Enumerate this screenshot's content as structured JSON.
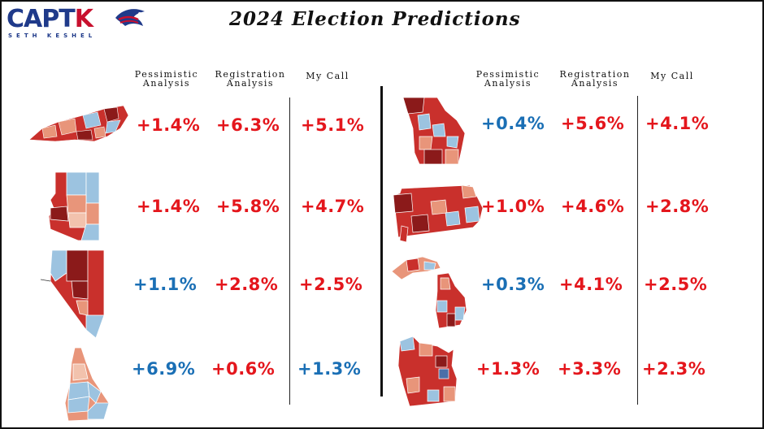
{
  "brand": {
    "logo_main": "CAPTK",
    "logo_sub": "SETH KESHEL"
  },
  "title": "2024 Election Predictions",
  "headers": {
    "pessimistic": [
      "Pessimistic",
      "Analysis"
    ],
    "registration": [
      "Registration",
      "Analysis"
    ],
    "my_call": "My Call"
  },
  "left_rows": [
    {
      "map_icon": "north-carolina-county-map",
      "pessimistic": "+1.4%",
      "registration": "+6.3%",
      "my_call": "+5.1%"
    },
    {
      "map_icon": "arizona-county-map",
      "pessimistic": "+1.4%",
      "registration": "+5.8%",
      "my_call": "+4.7%"
    },
    {
      "map_icon": "nevada-county-map",
      "pessimistic": "+1.1%",
      "registration": "+2.8%",
      "my_call": "+2.5%"
    },
    {
      "map_icon": "new-hampshire-county-map",
      "pessimistic": "+6.9%",
      "registration": "+0.6%",
      "my_call": "+1.3%"
    }
  ],
  "right_rows": [
    {
      "map_icon": "georgia-county-map",
      "pessimistic": "+0.4%",
      "registration": "+5.6%",
      "my_call": "+4.1%"
    },
    {
      "map_icon": "pennsylvania-county-map",
      "pessimistic": "+1.0%",
      "registration": "+4.6%",
      "my_call": "+2.8%"
    },
    {
      "map_icon": "michigan-county-map",
      "pessimistic": "+0.3%",
      "registration": "+4.1%",
      "my_call": "+2.5%"
    },
    {
      "map_icon": "wisconsin-county-map",
      "pessimistic": "+1.3%",
      "registration": "+3.3%",
      "my_call": "+2.3%"
    }
  ],
  "colors": {
    "red": "#e4161c",
    "blue": "#1a6fb5",
    "map_red": "#c9302c",
    "map_dark_red": "#8b1a1a",
    "map_salmon": "#e8957a",
    "map_blue": "#9cc3e0"
  }
}
